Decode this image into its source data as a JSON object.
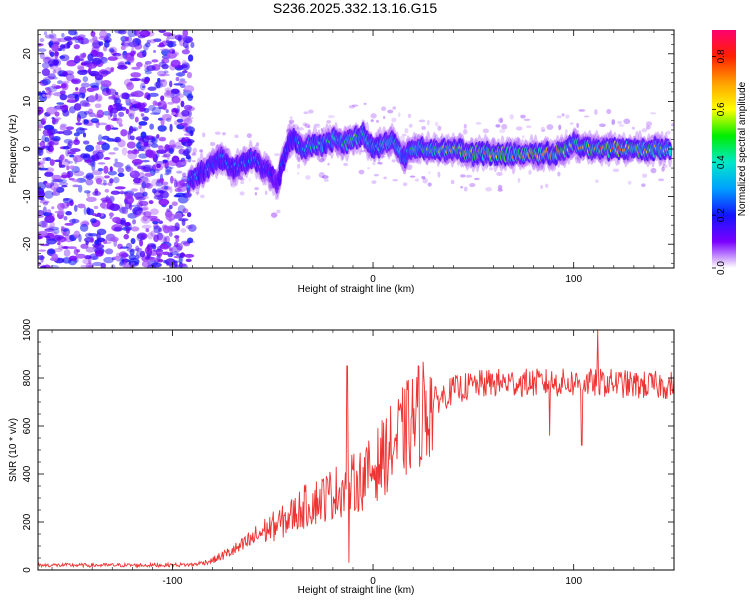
{
  "title": "S236.2025.332.13.16.G15",
  "colors": {
    "snr_line": "#ee3333",
    "heat_base": "#8a3bf0",
    "colorbar": [
      "#ffffff",
      "#7a00ff",
      "#1414ff",
      "#00a0ff",
      "#00e8c8",
      "#00ee00",
      "#ffff00",
      "#ffa000",
      "#ff2000",
      "#ff0070"
    ]
  },
  "chart_data": [
    {
      "type": "heatmap",
      "name": "spectrogram",
      "xlabel": "Height of straight line (km)",
      "ylabel": "Frequency (Hz)",
      "xlim": [
        -167,
        150
      ],
      "ylim": [
        -25,
        25
      ],
      "xticks": [
        -100,
        0,
        100
      ],
      "yticks": [
        -20,
        -10,
        0,
        10,
        20
      ],
      "colorbar": {
        "label": "Normalized spectral amplitude",
        "range": [
          0.0,
          0.9
        ],
        "ticks": [
          0.0,
          0.2,
          0.4,
          0.6,
          0.8
        ]
      },
      "noise_region_x": [
        -167,
        -90
      ],
      "ridge": {
        "x": [
          -92,
          -85,
          -80,
          -75,
          -70,
          -65,
          -60,
          -55,
          -50,
          -48,
          -45,
          -42,
          -40,
          -35,
          -30,
          -25,
          -20,
          -15,
          -10,
          -5,
          0,
          5,
          10,
          15,
          20,
          30,
          40,
          50,
          60,
          70,
          80,
          90,
          100,
          110,
          120,
          130,
          140,
          148
        ],
        "freq_hz": [
          -7,
          -5,
          -3,
          -2,
          -4,
          -3,
          -2,
          -4,
          -5,
          -8,
          -3,
          1,
          2,
          0,
          1,
          1,
          2,
          1,
          2,
          3,
          0,
          1,
          2,
          -2,
          0,
          0,
          0,
          -1,
          -1,
          -1,
          -1,
          -1,
          1,
          0,
          0,
          0,
          0,
          0
        ],
        "amplitude": [
          0.35,
          0.3,
          0.32,
          0.3,
          0.3,
          0.3,
          0.35,
          0.3,
          0.2,
          0.15,
          0.25,
          0.3,
          0.35,
          0.4,
          0.45,
          0.45,
          0.5,
          0.5,
          0.55,
          0.55,
          0.45,
          0.5,
          0.5,
          0.4,
          0.5,
          0.6,
          0.65,
          0.75,
          0.8,
          0.7,
          0.75,
          0.8,
          0.6,
          0.75,
          0.8,
          0.75,
          0.7,
          0.6
        ]
      }
    },
    {
      "type": "line",
      "name": "snr",
      "xlabel": "Height of straight line (km)",
      "ylabel": "SNR (10 * v/v)",
      "xlim": [
        -167,
        150
      ],
      "ylim": [
        0,
        1000
      ],
      "xticks": [
        -100,
        0,
        100
      ],
      "yticks": [
        0,
        200,
        400,
        600,
        800,
        1000
      ],
      "envelope": {
        "x": [
          -167,
          -140,
          -110,
          -90,
          -85,
          -80,
          -75,
          -70,
          -65,
          -60,
          -55,
          -50,
          -45,
          -40,
          -35,
          -30,
          -25,
          -20,
          -15,
          -10,
          -5,
          0,
          5,
          10,
          15,
          20,
          25,
          30,
          40,
          50,
          60,
          70,
          80,
          90,
          100,
          110,
          120,
          130,
          140,
          150
        ],
        "snr": [
          20,
          20,
          20,
          22,
          30,
          40,
          60,
          80,
          100,
          130,
          160,
          180,
          200,
          230,
          260,
          280,
          300,
          320,
          340,
          360,
          380,
          420,
          470,
          520,
          570,
          620,
          670,
          700,
          750,
          770,
          780,
          780,
          780,
          780,
          780,
          780,
          780,
          770,
          770,
          770
        ]
      },
      "spikes": [
        {
          "x": -13,
          "snr": 850
        },
        {
          "x": -12,
          "snr": 30
        },
        {
          "x": 112,
          "snr": 1000
        },
        {
          "x": 88,
          "snr": 560
        },
        {
          "x": 104,
          "snr": 520
        }
      ]
    }
  ]
}
